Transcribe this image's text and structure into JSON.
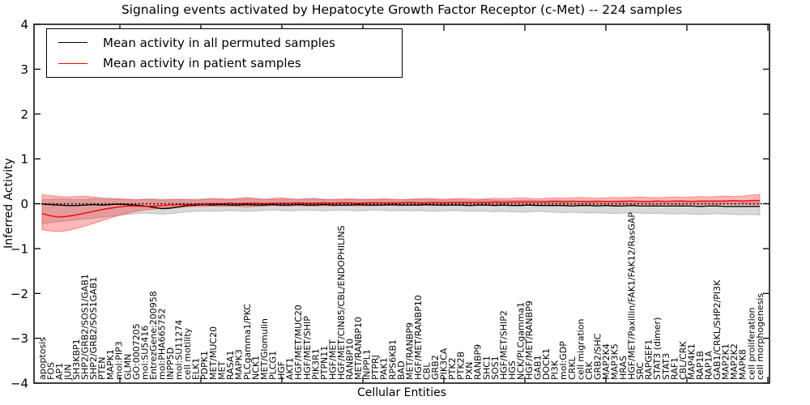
{
  "chart_data": {
    "type": "line",
    "title": "Signaling events activated by Hepatocyte Growth Factor Receptor (c-Met) -- 224 samples",
    "xlabel": "Cellular Entities",
    "ylabel": "Inferred Activity",
    "ylim": [
      -4,
      4
    ],
    "yticks": [
      4,
      3,
      2,
      1,
      0,
      -1,
      -2,
      -3,
      -4
    ],
    "grid": false,
    "legend_position": "upper-left",
    "baseline": {
      "y": 0,
      "style": "dotted",
      "color": "#000000"
    },
    "categories": [
      "apoptosis",
      "FOS",
      "AP1",
      "JUN",
      "SH3KBP1",
      "SHP2/GRB2/SOS1/GAB1",
      "SHP2/GRB2/SOS1GAB1",
      "PTEN",
      "MAPK1",
      "mol:PIP3",
      "GLMN",
      "GO:0007205",
      "mol:SU5416",
      "EntrezGene:200958",
      "mol:PHA665752",
      "INPP5D",
      "mol:SU11274",
      "cell motility",
      "ELK1",
      "PDPK1",
      "MET/MUC20",
      "MET",
      "RASA1",
      "MAPK3",
      "PLCgamma1/PKC",
      "NCK1",
      "MET/Glomulin",
      "PLCG1",
      "HGF",
      "AKT1",
      "HGF/MET/MUC20",
      "HGF/MET/SHIP",
      "PIK3R1",
      "PTPN11",
      "HGF/MET",
      "HGF/MET/CIN85/CBL/ENDOPHILINS",
      "RANBP10",
      "MET/RANBP10",
      "INPPL1",
      "PTPRJ",
      "PAK1",
      "RPS6KB1",
      "BAD",
      "MET/RANBP9",
      "HGF/MET/RANBP10",
      "CBL",
      "GRB2",
      "PIK3CA",
      "PTK2",
      "PTK2B",
      "PXN",
      "RANBP9",
      "SHC1",
      "SOS1",
      "HGF/MET/SHIP2",
      "HGS",
      "NCK/PLCgamma1",
      "HGF/MET/RANBP9",
      "GAB1",
      "DOCK1",
      "PI3K",
      "mol:GDP",
      "CRKL",
      "cell migration",
      "CRK",
      "GRB2/SHC",
      "MAP2K4",
      "MAP3K5",
      "HRAS",
      "HGF/MET/Paxillin/FAK1/FAK12/RasGAP",
      "SRC",
      "RAPGEF1",
      "STAT3 (dimer)",
      "STAT3",
      "RAF1",
      "CBL/CRK",
      "MAP4K1",
      "RAP1B",
      "RAP1A",
      "GAB1/CRKL/SHP2/PI3K",
      "MAP2K1",
      "MAP2K2",
      "MAPK8",
      "cell proliferation",
      "cell morphogenesis"
    ],
    "series": [
      {
        "id": "permuted",
        "name": "Mean activity in all permuted samples",
        "color": "#000000",
        "band_color": "#aaaaaa",
        "band_edge": "#999999",
        "band_opacity": 0.45,
        "values": [
          -0.01,
          -0.02,
          -0.03,
          -0.04,
          -0.04,
          -0.03,
          -0.02,
          -0.03,
          -0.02,
          -0.01,
          -0.02,
          -0.03,
          -0.05,
          -0.08,
          -0.11,
          -0.1,
          -0.07,
          -0.04,
          -0.03,
          -0.02,
          -0.03,
          -0.02,
          -0.03,
          -0.03,
          -0.02,
          -0.03,
          -0.03,
          -0.02,
          -0.03,
          -0.03,
          -0.02,
          -0.03,
          -0.03,
          -0.02,
          -0.03,
          -0.03,
          -0.03,
          -0.02,
          -0.03,
          -0.03,
          -0.03,
          -0.02,
          -0.03,
          -0.03,
          -0.03,
          -0.02,
          -0.03,
          -0.03,
          -0.03,
          -0.03,
          -0.04,
          -0.03,
          -0.03,
          -0.04,
          -0.03,
          -0.04,
          -0.04,
          -0.03,
          -0.04,
          -0.04,
          -0.04,
          -0.04,
          -0.05,
          -0.04,
          -0.04,
          -0.05,
          -0.04,
          -0.05,
          -0.05,
          -0.04,
          -0.05,
          -0.05,
          -0.05,
          -0.05,
          -0.05,
          -0.05,
          -0.05,
          -0.06,
          -0.05,
          -0.05,
          -0.06,
          -0.06,
          -0.06,
          -0.06,
          -0.06
        ],
        "band_top": [
          0.1,
          0.1,
          0.11,
          0.1,
          0.09,
          0.1,
          0.11,
          0.1,
          0.09,
          0.1,
          0.1,
          0.09,
          0.1,
          0.11,
          0.1,
          0.1,
          0.09,
          0.1,
          0.1,
          0.11,
          0.1,
          0.09,
          0.1,
          0.1,
          0.11,
          0.1,
          0.1,
          0.09,
          0.1,
          0.1,
          0.1,
          0.11,
          0.1,
          0.09,
          0.1,
          0.1,
          0.09,
          0.1,
          0.1,
          0.09,
          0.1,
          0.1,
          0.09,
          0.09,
          0.1,
          0.09,
          0.09,
          0.08,
          0.09,
          0.09,
          0.08,
          0.08,
          0.09,
          0.08,
          0.08,
          0.07,
          0.08,
          0.08,
          0.07,
          0.07,
          0.08,
          0.07,
          0.07,
          0.06,
          0.07,
          0.07,
          0.06,
          0.06,
          0.07,
          0.06,
          0.06,
          0.05,
          0.06,
          0.06,
          0.05,
          0.05,
          0.06,
          0.05,
          0.05,
          0.04,
          0.05,
          0.05,
          0.04,
          0.04,
          0.05
        ],
        "band_bottom": [
          -0.45,
          -0.42,
          -0.4,
          -0.38,
          -0.36,
          -0.34,
          -0.32,
          -0.3,
          -0.28,
          -0.26,
          -0.24,
          -0.22,
          -0.21,
          -0.22,
          -0.23,
          -0.22,
          -0.2,
          -0.18,
          -0.17,
          -0.16,
          -0.17,
          -0.16,
          -0.15,
          -0.16,
          -0.17,
          -0.16,
          -0.15,
          -0.14,
          -0.15,
          -0.16,
          -0.15,
          -0.14,
          -0.15,
          -0.16,
          -0.15,
          -0.14,
          -0.15,
          -0.16,
          -0.15,
          -0.14,
          -0.15,
          -0.16,
          -0.15,
          -0.16,
          -0.15,
          -0.16,
          -0.17,
          -0.16,
          -0.15,
          -0.16,
          -0.17,
          -0.16,
          -0.17,
          -0.18,
          -0.17,
          -0.18,
          -0.19,
          -0.18,
          -0.17,
          -0.18,
          -0.19,
          -0.2,
          -0.19,
          -0.2,
          -0.21,
          -0.2,
          -0.21,
          -0.22,
          -0.21,
          -0.2,
          -0.21,
          -0.22,
          -0.21,
          -0.22,
          -0.23,
          -0.22,
          -0.23,
          -0.24,
          -0.23,
          -0.22,
          -0.23,
          -0.24,
          -0.25,
          -0.24,
          -0.25
        ]
      },
      {
        "id": "patient",
        "name": "Mean activity in patient samples",
        "color": "#ff0000",
        "band_color": "#ff0000",
        "band_edge": "#ff4444",
        "band_opacity": 0.28,
        "values": [
          -0.22,
          -0.27,
          -0.3,
          -0.28,
          -0.25,
          -0.21,
          -0.17,
          -0.13,
          -0.1,
          -0.07,
          -0.05,
          -0.05,
          -0.06,
          -0.05,
          -0.04,
          -0.03,
          -0.02,
          -0.02,
          -0.01,
          -0.01,
          0.0,
          0.0,
          0.01,
          0.0,
          0.01,
          0.01,
          0.0,
          0.01,
          0.01,
          0.01,
          0.02,
          0.01,
          0.01,
          0.02,
          0.01,
          0.02,
          0.02,
          0.01,
          0.02,
          0.02,
          0.02,
          0.02,
          0.02,
          0.03,
          0.02,
          0.02,
          0.03,
          0.02,
          0.03,
          0.03,
          0.03,
          0.03,
          0.03,
          0.04,
          0.03,
          0.04,
          0.04,
          0.04,
          0.04,
          0.04,
          0.05,
          0.04,
          0.05,
          0.05,
          0.04,
          0.05,
          0.05,
          0.05,
          0.05,
          0.06,
          0.05,
          0.05,
          0.06,
          0.05,
          0.06,
          0.06,
          0.05,
          0.06,
          0.06,
          0.06,
          0.06,
          0.07,
          0.06,
          0.07,
          0.07
        ],
        "band_top": [
          0.2,
          0.18,
          0.16,
          0.15,
          0.16,
          0.17,
          0.15,
          0.13,
          0.12,
          0.11,
          0.1,
          0.09,
          0.1,
          0.09,
          0.08,
          0.09,
          0.1,
          0.09,
          0.08,
          0.1,
          0.12,
          0.11,
          0.1,
          0.12,
          0.14,
          0.12,
          0.1,
          0.12,
          0.13,
          0.11,
          0.1,
          0.11,
          0.12,
          0.1,
          0.09,
          0.1,
          0.11,
          0.1,
          0.09,
          0.1,
          0.11,
          0.1,
          0.09,
          0.1,
          0.11,
          0.12,
          0.11,
          0.1,
          0.11,
          0.12,
          0.11,
          0.1,
          0.11,
          0.12,
          0.11,
          0.12,
          0.13,
          0.12,
          0.11,
          0.12,
          0.13,
          0.12,
          0.13,
          0.14,
          0.13,
          0.12,
          0.13,
          0.14,
          0.13,
          0.14,
          0.15,
          0.14,
          0.13,
          0.14,
          0.15,
          0.14,
          0.15,
          0.16,
          0.15,
          0.16,
          0.17,
          0.16,
          0.17,
          0.19,
          0.21
        ],
        "band_bottom": [
          -0.58,
          -0.61,
          -0.62,
          -0.6,
          -0.55,
          -0.5,
          -0.44,
          -0.38,
          -0.32,
          -0.26,
          -0.21,
          -0.17,
          -0.14,
          -0.12,
          -0.1,
          -0.09,
          -0.08,
          -0.07,
          -0.06,
          -0.06,
          -0.05,
          -0.06,
          -0.05,
          -0.06,
          -0.07,
          -0.06,
          -0.05,
          -0.04,
          -0.05,
          -0.05,
          -0.04,
          -0.05,
          -0.05,
          -0.04,
          -0.05,
          -0.04,
          -0.04,
          -0.05,
          -0.04,
          -0.04,
          -0.03,
          -0.04,
          -0.04,
          -0.03,
          -0.04,
          -0.04,
          -0.03,
          -0.04,
          -0.03,
          -0.03,
          -0.04,
          -0.03,
          -0.03,
          -0.02,
          -0.03,
          -0.03,
          -0.02,
          -0.03,
          -0.02,
          -0.03,
          -0.02,
          -0.03,
          -0.02,
          -0.02,
          -0.03,
          -0.02,
          -0.02,
          -0.03,
          -0.02,
          -0.02,
          -0.01,
          -0.02,
          -0.02,
          -0.01,
          -0.02,
          -0.02,
          -0.01,
          -0.02,
          -0.01,
          -0.02,
          -0.01,
          -0.02,
          -0.01,
          -0.02,
          -0.02
        ]
      }
    ]
  }
}
